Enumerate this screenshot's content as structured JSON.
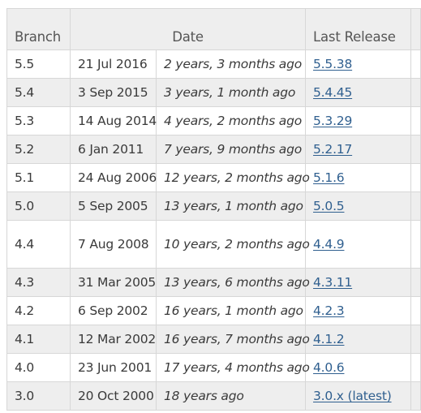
{
  "table": {
    "headers": {
      "branch": "Branch",
      "date": "Date",
      "last_release": "Last Release"
    },
    "rows": [
      {
        "branch": "5.5",
        "date": "21 Jul 2016",
        "ago": "2 years, 3 months ago",
        "release": "5.5.38"
      },
      {
        "branch": "5.4",
        "date": "3 Sep 2015",
        "ago": "3 years, 1 month ago",
        "release": "5.4.45"
      },
      {
        "branch": "5.3",
        "date": "14 Aug 2014",
        "ago": "4 years, 2 months ago",
        "release": "5.3.29"
      },
      {
        "branch": "5.2",
        "date": "6 Jan 2011",
        "ago": "7 years, 9 months ago",
        "release": "5.2.17"
      },
      {
        "branch": "5.1",
        "date": "24 Aug 2006",
        "ago": "12 years, 2 months ago",
        "release": "5.1.6"
      },
      {
        "branch": "5.0",
        "date": "5 Sep 2005",
        "ago": "13 years, 1 month ago",
        "release": "5.0.5"
      },
      {
        "branch": "4.4",
        "date": "7 Aug 2008",
        "ago": "10 years, 2 months ago",
        "release": "4.4.9"
      },
      {
        "branch": "4.3",
        "date": "31 Mar 2005",
        "ago": "13 years, 6 months ago",
        "release": "4.3.11"
      },
      {
        "branch": "4.2",
        "date": "6 Sep 2002",
        "ago": "16 years, 1 month ago",
        "release": "4.2.3"
      },
      {
        "branch": "4.1",
        "date": "12 Mar 2002",
        "ago": "16 years, 7 months ago",
        "release": "4.1.2"
      },
      {
        "branch": "4.0",
        "date": "23 Jun 2001",
        "ago": "17 years, 4 months ago",
        "release": "4.0.6"
      },
      {
        "branch": "3.0",
        "date": "20 Oct 2000",
        "ago": "18 years ago",
        "release": "3.0.x (latest)"
      }
    ]
  },
  "colors": {
    "header_bg": "#eeeeee",
    "stripe_bg": "#eeeeee",
    "border": "#d7d7d7",
    "link": "#2f5f8f",
    "text": "#3a3a3a"
  }
}
